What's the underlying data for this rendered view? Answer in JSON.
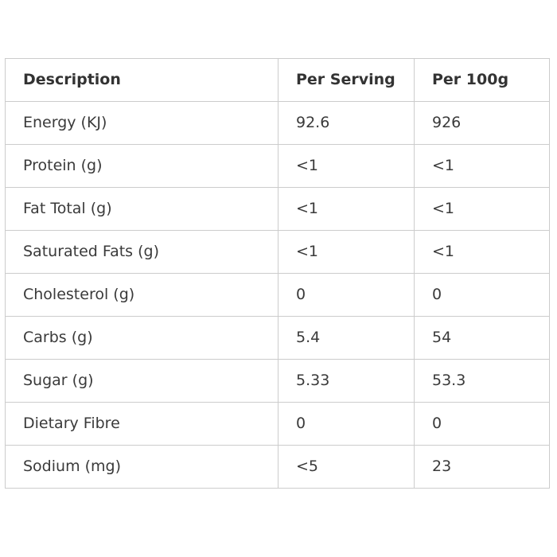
{
  "table": {
    "headers": [
      "Description",
      "Per Serving",
      "Per 100g"
    ],
    "rows": [
      [
        "Energy (KJ)",
        "92.6",
        "926"
      ],
      [
        "Protein (g)",
        "<1",
        "<1"
      ],
      [
        "Fat Total (g)",
        "<1",
        "<1"
      ],
      [
        "Saturated Fats (g)",
        "<1",
        "<1"
      ],
      [
        "Cholesterol (g)",
        "0",
        "0"
      ],
      [
        "Carbs (g)",
        "5.4",
        "54"
      ],
      [
        "Sugar (g)",
        "5.33",
        "53.3"
      ],
      [
        "Dietary Fibre",
        "0",
        "0"
      ],
      [
        "Sodium (mg)",
        "<5",
        "23"
      ]
    ]
  }
}
